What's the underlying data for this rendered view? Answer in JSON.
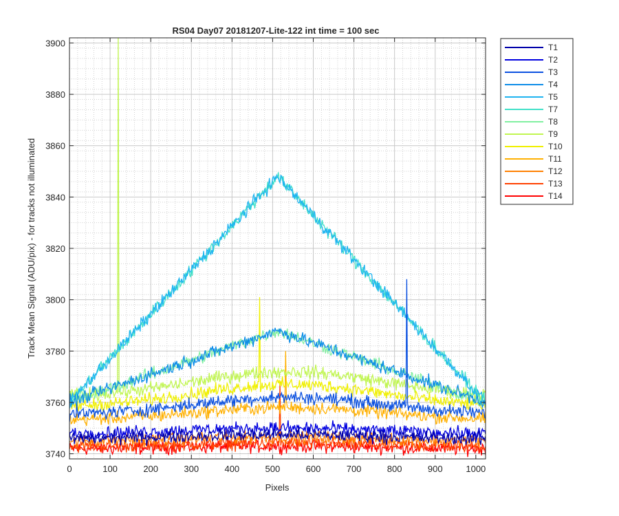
{
  "chart_data": {
    "type": "line",
    "title": "RS04 Day07 20181207-Lite-122 int time = 100 sec",
    "xlabel": "Pixels",
    "ylabel": "Track Mean Signal (ADU/pix) - for tracks not illuminated",
    "xlim": [
      0,
      1024
    ],
    "ylim": [
      3738,
      3902
    ],
    "xticks": [
      "0",
      "100",
      "200",
      "300",
      "400",
      "500",
      "600",
      "700",
      "800",
      "900",
      "1000"
    ],
    "yticks": [
      "3740",
      "3760",
      "3780",
      "3800",
      "3820",
      "3840",
      "3860",
      "3880",
      "3900"
    ],
    "grid": true,
    "minor_grid": true,
    "legend_position": "outside-top-right",
    "series": [
      {
        "name": "T1",
        "color": "#0000AA",
        "shape": "flat",
        "base": 3746,
        "peak": 3749,
        "noise": 2.5
      },
      {
        "name": "T2",
        "color": "#0000E0",
        "shape": "flat",
        "base": 3748,
        "peak": 3752,
        "noise": 2.5
      },
      {
        "name": "T3",
        "color": "#0A50E0",
        "shape": "bump",
        "base": 3755,
        "peak": 3762,
        "noise": 2.5,
        "spikes": [
          {
            "x": 830,
            "y": 3808
          }
        ]
      },
      {
        "name": "T4",
        "color": "#0C8CE8",
        "shape": "tri",
        "base": 3760,
        "peak": 3788,
        "noise": 2.5
      },
      {
        "name": "T5",
        "color": "#1EB4F0",
        "shape": "tri",
        "base": 3760,
        "peak": 3848,
        "noise": 2.5
      },
      {
        "name": "T7",
        "color": "#40E0C8",
        "shape": "tri",
        "base": 3760,
        "peak": 3848,
        "noise": 2.5,
        "spikes": [
          {
            "x": 78,
            "y": 3776
          }
        ]
      },
      {
        "name": "T8",
        "color": "#80F0A0",
        "shape": "tri",
        "base": 3760,
        "peak": 3788,
        "noise": 2.5
      },
      {
        "name": "T9",
        "color": "#C0F550",
        "shape": "bump",
        "base": 3762,
        "peak": 3772,
        "noise": 2.5,
        "spikes": [
          {
            "x": 120,
            "y": 3902
          }
        ]
      },
      {
        "name": "T10",
        "color": "#F0F000",
        "shape": "bump",
        "base": 3758,
        "peak": 3767,
        "noise": 2.5,
        "spikes": [
          {
            "x": 468,
            "y": 3801
          }
        ]
      },
      {
        "name": "T11",
        "color": "#FFB000",
        "shape": "bump",
        "base": 3753,
        "peak": 3758,
        "noise": 2.5,
        "spikes": [
          {
            "x": 532,
            "y": 3780
          }
        ]
      },
      {
        "name": "T12",
        "color": "#FF8000",
        "shape": "flat",
        "base": 3745,
        "peak": 3748,
        "noise": 2.5
      },
      {
        "name": "T13",
        "color": "#FF4000",
        "shape": "flat",
        "base": 3743,
        "peak": 3745,
        "noise": 2.5,
        "spikes": [
          {
            "x": 518,
            "y": 3768
          }
        ]
      },
      {
        "name": "T14",
        "color": "#FF0000",
        "shape": "flat",
        "base": 3742,
        "peak": 3744,
        "noise": 2.5
      }
    ]
  }
}
